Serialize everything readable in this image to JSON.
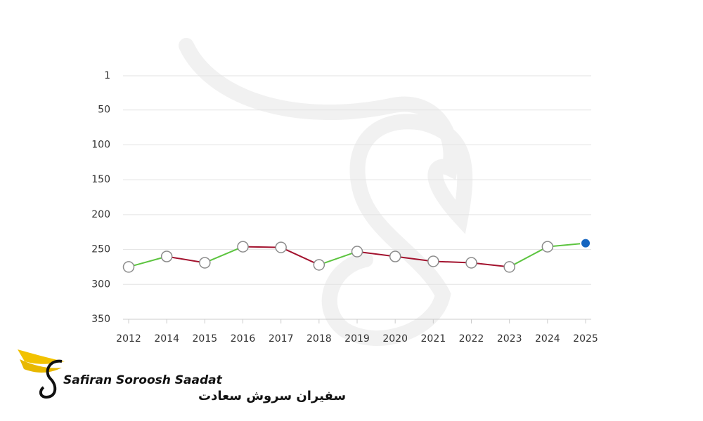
{
  "chart_data": {
    "type": "line",
    "categories": [
      "2012",
      "2014",
      "2015",
      "2016",
      "2017",
      "2018",
      "2019",
      "2020",
      "2021",
      "2022",
      "2023",
      "2024",
      "2025"
    ],
    "series": [
      {
        "values": [
          275,
          260,
          269,
          246,
          247,
          272,
          253,
          260,
          267,
          269,
          275,
          246,
          241
        ]
      }
    ],
    "ylim": [
      1,
      350
    ],
    "y_inverted": true,
    "yticks": [
      1,
      50,
      100,
      150,
      200,
      250,
      300,
      350
    ],
    "grid": true,
    "improve_color": "#5cc43f",
    "decline_color": "#a3122e",
    "marker_fill": "#ffffff",
    "marker_stroke": "#8c8c8c",
    "highlight_color": "#1565c0"
  },
  "logo": {
    "name": "Safiran Soroosh Saadat",
    "name_fa": "سفیران سروش سعادت"
  }
}
